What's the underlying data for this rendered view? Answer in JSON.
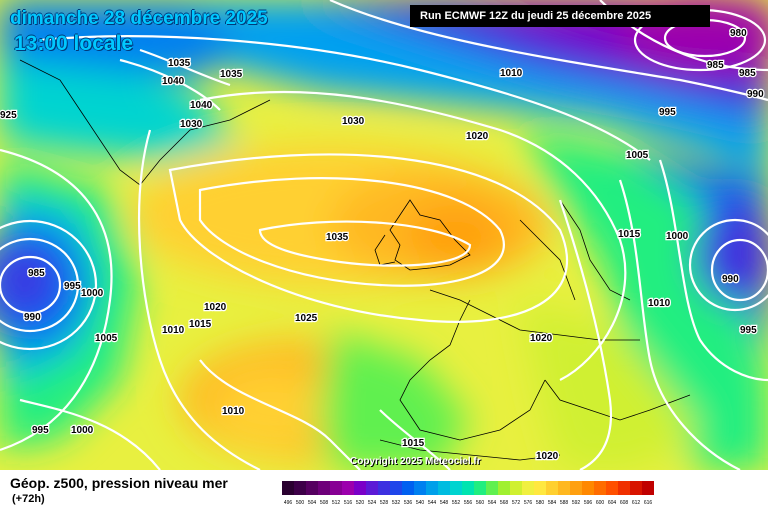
{
  "header": {
    "date_line": "dimanche 28 décembre 2025",
    "time_line": "13:00 locale",
    "run_info": "Run ECMWF 12Z du jeudi 25 décembre 2025"
  },
  "copyright": "Copyright 2025 Meteociel.fr",
  "footer": {
    "title": "Géop. z500, pression niveau mer",
    "lead_time": "(+72h)"
  },
  "isobar_labels": [
    "1035",
    "1035",
    "1040",
    "1040",
    "1030",
    "1030",
    "1010",
    "1020",
    "1035",
    "985",
    "995",
    "990",
    "1000",
    "1005",
    "1010",
    "1015",
    "1020",
    "1025",
    "1010",
    "995",
    "1000",
    "1015",
    "1020",
    "980",
    "985",
    "995",
    "1005",
    "1015",
    "1000",
    "990",
    "1010",
    "995",
    "1020",
    "925",
    "990",
    "985"
  ],
  "colorbar": {
    "colors": [
      "#2a0030",
      "#3d0048",
      "#550060",
      "#6e007a",
      "#870094",
      "#9c00ad",
      "#7a00c8",
      "#5c1ad6",
      "#3d30e0",
      "#1f46ea",
      "#0060f0",
      "#0080f0",
      "#00a0ea",
      "#00bce0",
      "#00d4d0",
      "#00e4b0",
      "#20ee80",
      "#60f050",
      "#a0f030",
      "#d0f030",
      "#f0f040",
      "#ffe840",
      "#ffd030",
      "#ffb820",
      "#ffa010",
      "#ff8800",
      "#ff6c00",
      "#ff5000",
      "#f03000",
      "#d81400",
      "#c00000",
      "#a00000",
      "#800000",
      "#600000",
      "#400000",
      "#200000",
      "#000000"
    ],
    "ticks": [
      "496",
      "500",
      "504",
      "508",
      "512",
      "516",
      "520",
      "524",
      "528",
      "532",
      "536",
      "540",
      "544",
      "548",
      "552",
      "556",
      "560",
      "564",
      "568",
      "572",
      "576",
      "580",
      "584",
      "588",
      "592",
      "596",
      "600",
      "604",
      "608",
      "612",
      "616"
    ]
  }
}
